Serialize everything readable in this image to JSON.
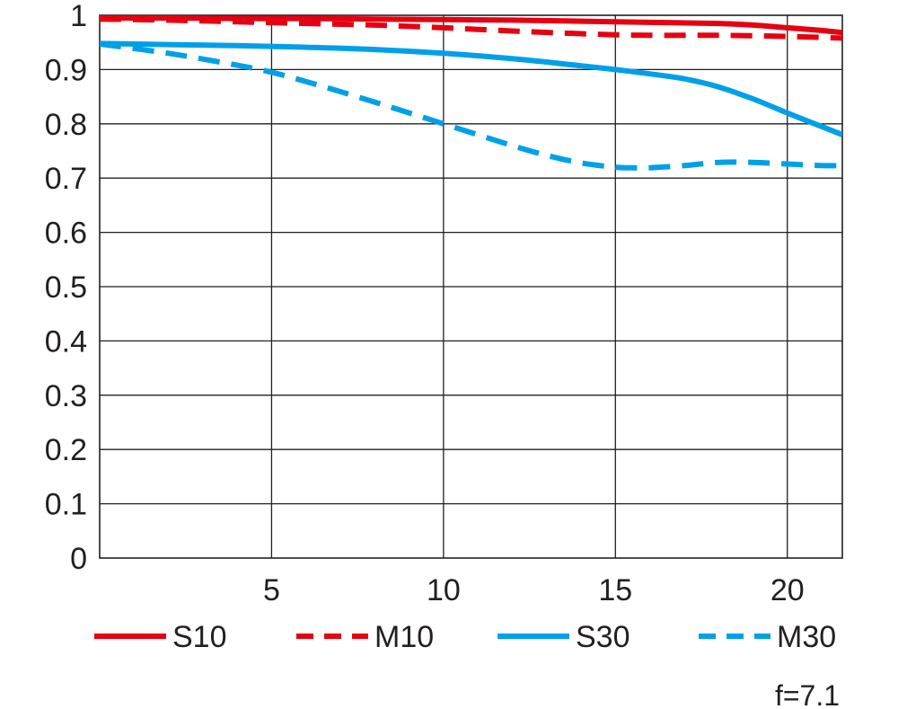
{
  "chart_data": {
    "type": "line",
    "title": "",
    "xlabel": "",
    "ylabel": "",
    "xlim": [
      0,
      21.6
    ],
    "ylim": [
      0,
      1
    ],
    "grid": true,
    "x_ticks": [
      5,
      10,
      15,
      20
    ],
    "x_tick_labels": [
      "5",
      "10",
      "15",
      "20"
    ],
    "y_ticks": [
      0,
      0.1,
      0.2,
      0.3,
      0.4,
      0.5,
      0.6,
      0.7,
      0.8,
      0.9,
      1
    ],
    "y_tick_labels": [
      "0",
      "0.1",
      "0.2",
      "0.3",
      "0.4",
      "0.5",
      "0.6",
      "0.7",
      "0.8",
      "0.9",
      "1"
    ],
    "legend_position": "bottom",
    "annotation": "f=7.1",
    "series": [
      {
        "name": "S10",
        "color": "#e60012",
        "dash": "solid",
        "x": [
          0,
          2,
          4,
          6,
          8,
          10,
          12,
          14,
          16,
          18,
          19,
          20,
          21,
          21.6
        ],
        "y": [
          0.995,
          0.995,
          0.994,
          0.994,
          0.993,
          0.992,
          0.991,
          0.989,
          0.987,
          0.985,
          0.982,
          0.977,
          0.972,
          0.968
        ]
      },
      {
        "name": "M10",
        "color": "#e60012",
        "dash": "dashed",
        "x": [
          0,
          2,
          4,
          6,
          8,
          10,
          12,
          14,
          15,
          16,
          18,
          20,
          21.6
        ],
        "y": [
          0.993,
          0.991,
          0.988,
          0.985,
          0.982,
          0.977,
          0.971,
          0.966,
          0.964,
          0.963,
          0.963,
          0.961,
          0.958
        ]
      },
      {
        "name": "S30",
        "color": "#00a0e9",
        "dash": "solid",
        "x": [
          0,
          2,
          4,
          6,
          8,
          10,
          12,
          14,
          15,
          16,
          17,
          18,
          19,
          20,
          21,
          21.6
        ],
        "y": [
          0.948,
          0.946,
          0.944,
          0.941,
          0.937,
          0.93,
          0.92,
          0.907,
          0.9,
          0.892,
          0.883,
          0.868,
          0.846,
          0.82,
          0.795,
          0.78
        ]
      },
      {
        "name": "M30",
        "color": "#00a0e9",
        "dash": "dashed",
        "x": [
          0,
          2,
          4,
          5,
          6,
          8,
          10,
          12,
          13,
          14,
          15,
          15.5,
          16,
          17,
          18,
          19,
          20,
          21,
          21.6
        ],
        "y": [
          0.947,
          0.93,
          0.908,
          0.895,
          0.878,
          0.84,
          0.8,
          0.76,
          0.742,
          0.728,
          0.72,
          0.719,
          0.719,
          0.723,
          0.729,
          0.729,
          0.726,
          0.723,
          0.723
        ]
      }
    ]
  }
}
